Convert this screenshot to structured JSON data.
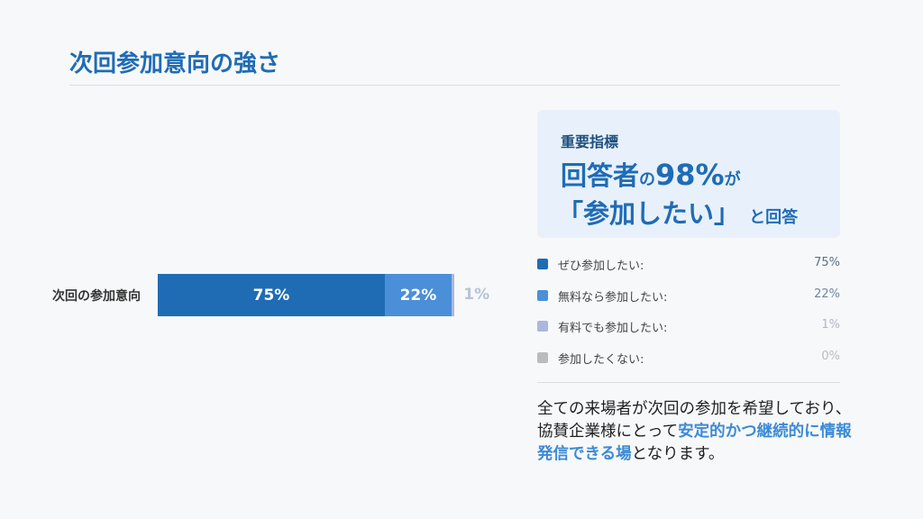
{
  "title": "次回参加意向の強さ",
  "chart_data": {
    "type": "bar",
    "orientation": "horizontal",
    "stacked": true,
    "categories": [
      "次回の参加意向"
    ],
    "series": [
      {
        "name": "ぜひ参加したい",
        "values": [
          75
        ],
        "color": "#1f6cb5",
        "label": "75%"
      },
      {
        "name": "無料なら参加したい",
        "values": [
          22
        ],
        "color": "#4a8fd8",
        "label": "22%"
      },
      {
        "name": "有料でも参加したい",
        "values": [
          1
        ],
        "color": "#a9b8dd",
        "label": "1%"
      },
      {
        "name": "参加したくない",
        "values": [
          0
        ],
        "color": "#bbbbbb",
        "label": "0%"
      }
    ],
    "xlim": [
      0,
      100
    ],
    "grid": false,
    "legend": "right"
  },
  "card": {
    "kicker": "重要指標",
    "line1a": "回答者",
    "line1b": "の",
    "line1c": "98%",
    "line1d": "が",
    "line2a": "「参加したい」",
    "line2b": "と回答"
  },
  "legend": [
    {
      "label": "ぜひ参加したい:",
      "value": "75%",
      "color": "#1f6cb5",
      "vcolor": "#5a6f86"
    },
    {
      "label": "無料なら参加したい:",
      "value": "22%",
      "color": "#4a8fd8",
      "vcolor": "#6d87a3"
    },
    {
      "label": "有料でも参加したい:",
      "value": "1%",
      "color": "#a9b8dd",
      "vcolor": "#b0b8c4"
    },
    {
      "label": "参加したくない:",
      "value": "0%",
      "color": "#bbbbbb",
      "vcolor": "#b8bcc2"
    }
  ],
  "note": {
    "p1": "全ての来場者が次回の参加を希望しており、協賛企業様にとって",
    "hl": "安定的かつ継続的に情報発信できる場",
    "p2": "となります。"
  }
}
